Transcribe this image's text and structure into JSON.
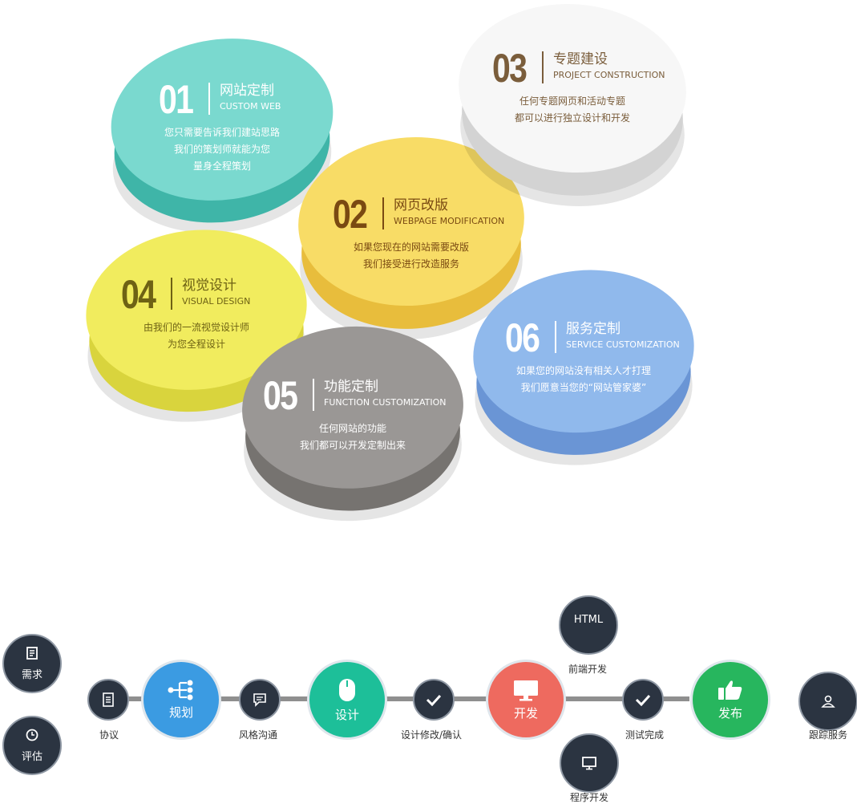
{
  "services": [
    {
      "num": "01",
      "title_zh": "网站定制",
      "title_en": "CUSTOM WEB",
      "desc": [
        "您只需要告诉我们建站思路",
        "我们的策划师就能为您",
        "量身全程策划"
      ],
      "color": "#7ad9cf"
    },
    {
      "num": "02",
      "title_zh": "网页改版",
      "title_en": "WEBPAGE MODIFICATION",
      "desc": [
        "如果您现在的网站需要改版",
        "我们接受进行改造服务"
      ],
      "color": "#f8dc66"
    },
    {
      "num": "03",
      "title_zh": "专题建设",
      "title_en": "PROJECT CONSTRUCTION",
      "desc": [
        "任何专题网页和活动专题",
        "都可以进行独立设计和开发"
      ],
      "color": "#f7f7f7"
    },
    {
      "num": "04",
      "title_zh": "视觉设计",
      "title_en": "VISUAL DESIGN",
      "desc": [
        "由我们的一流视觉设计师",
        "为您全程设计"
      ],
      "color": "#f1ec5e"
    },
    {
      "num": "05",
      "title_zh": "功能定制",
      "title_en": "FUNCTION CUSTOMIZATION",
      "desc": [
        "任何网站的功能",
        "我们都可以开发定制出来"
      ],
      "color": "#9a9795"
    },
    {
      "num": "06",
      "title_zh": "服务定制",
      "title_en": "SERVICE CUSTOMIZATION",
      "desc": [
        "如果您的网站没有相关人才打理",
        "我们愿意当您的“网站管家婆”"
      ],
      "color": "#90b9ec"
    }
  ],
  "process": {
    "side_left": [
      {
        "label": "需求",
        "icon": "document-icon"
      },
      {
        "label": "评估",
        "icon": "clock-icon"
      }
    ],
    "steps": [
      {
        "kind": "small",
        "caption": "协议",
        "icon": "contract-icon"
      },
      {
        "kind": "big",
        "label": "规划",
        "icon": "sitemap-icon",
        "color": "#3b9be2"
      },
      {
        "kind": "small",
        "caption": "风格沟通",
        "icon": "chat-icon"
      },
      {
        "kind": "big",
        "label": "设计",
        "icon": "mouse-icon",
        "color": "#1dbf99"
      },
      {
        "kind": "small",
        "caption": "设计修改/确认",
        "icon": "check-icon"
      },
      {
        "kind": "big",
        "label": "开发",
        "icon": "monitor-icon",
        "color": "#ee6a5f"
      },
      {
        "kind": "small",
        "caption": "测试完成",
        "icon": "check-icon"
      },
      {
        "kind": "big",
        "label": "发布",
        "icon": "thumbs-up-icon",
        "color": "#27b65e"
      }
    ],
    "branch_top": {
      "text": "HTML",
      "caption": "前端开发"
    },
    "branch_bottom": {
      "caption": "程序开发",
      "icon": "monitor-icon"
    },
    "side_right": {
      "caption": "跟踪服务",
      "icon": "user-icon"
    }
  }
}
